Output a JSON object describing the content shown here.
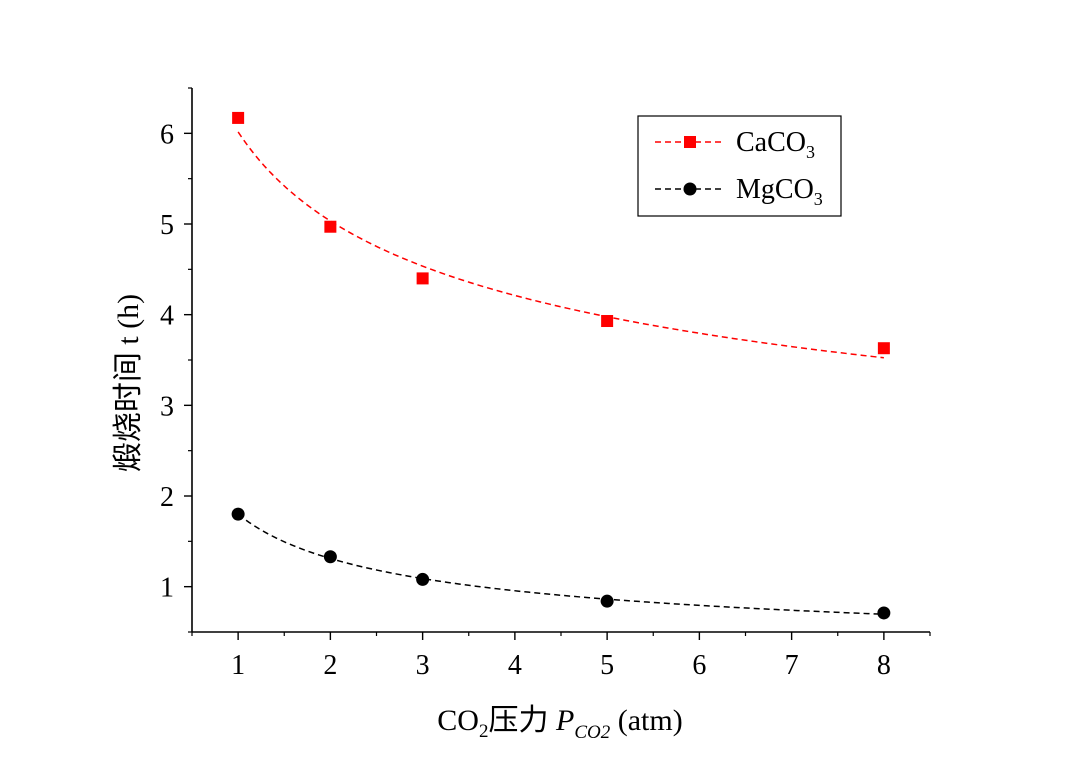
{
  "chart_data": {
    "type": "line",
    "title": "",
    "xlabel": {
      "prefix": "CO",
      "prefix_sub": "2",
      "text": "压力 ",
      "symbol": "P",
      "symbol_sub": "CO2",
      "suffix": " (atm)"
    },
    "ylabel": "煅烧时间 t (h)",
    "xlim": [
      0.5,
      8.5
    ],
    "ylim": [
      0.5,
      6.5
    ],
    "x_ticks": [
      1,
      2,
      3,
      4,
      5,
      6,
      7,
      8
    ],
    "x_tick_labels": [
      "1",
      "2",
      "3",
      "4",
      "5",
      "6",
      "7",
      "8"
    ],
    "y_ticks": [
      1,
      2,
      3,
      4,
      5,
      6
    ],
    "y_tick_labels": [
      "1",
      "2",
      "3",
      "4",
      "5",
      "6"
    ],
    "grid": false,
    "legend_position": "top-right",
    "series": [
      {
        "name": "CaCO",
        "name_sub": "3",
        "marker": "square",
        "color": "#ff0000",
        "line_style": "dashed",
        "x": [
          1,
          2,
          3,
          5,
          8
        ],
        "y": [
          6.17,
          4.97,
          4.4,
          3.93,
          3.63
        ]
      },
      {
        "name": "MgCO",
        "name_sub": "3",
        "marker": "circle",
        "color": "#000000",
        "line_style": "dashed",
        "x": [
          1,
          2,
          3,
          5,
          8
        ],
        "y": [
          1.8,
          1.33,
          1.08,
          0.84,
          0.71
        ]
      }
    ]
  }
}
